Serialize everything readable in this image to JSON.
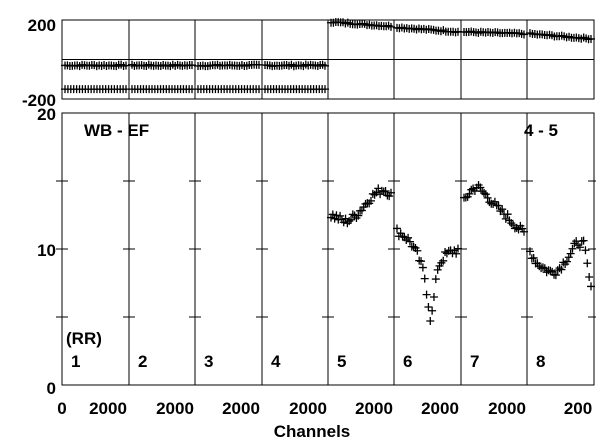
{
  "chart_data": {
    "type": "scatter",
    "title": "",
    "xlabel": "Channels",
    "annotations": {
      "baseline": "WB - EF",
      "pair": "4 - 5",
      "polarization": "(RR)"
    },
    "panel_labels": [
      "1",
      "2",
      "3",
      "4",
      "5",
      "6",
      "7",
      "8"
    ],
    "x_ticks": [
      "0",
      "2000",
      "2000",
      "2000",
      "2000",
      "2000",
      "2000",
      "2000",
      "200"
    ],
    "phase_plot": {
      "ylim": [
        -200,
        200
      ],
      "y_tick_labels": [
        "200",
        "-200"
      ],
      "series": [
        {
          "panel": 1,
          "y": [
            -30,
            -30
          ]
        },
        {
          "panel": 2,
          "y": [
            -30,
            -30
          ]
        },
        {
          "panel": 3,
          "y": [
            -30,
            -30
          ]
        },
        {
          "panel": 4,
          "y": [
            -30,
            -30
          ]
        },
        {
          "panel": 5,
          "y": [
            190,
            168
          ]
        },
        {
          "panel": 6,
          "y": [
            163,
            140
          ]
        },
        {
          "panel": 7,
          "y": [
            140,
            130
          ]
        },
        {
          "panel": 8,
          "y": [
            130,
            105
          ]
        }
      ],
      "second_row_y": -150
    },
    "amplitude_plot": {
      "ylim": [
        0,
        20
      ],
      "y_tick_labels": [
        "20",
        "10",
        "0"
      ],
      "series": [
        {
          "panel": 1,
          "values": []
        },
        {
          "panel": 2,
          "values": []
        },
        {
          "panel": 3,
          "values": []
        },
        {
          "panel": 4,
          "values": []
        },
        {
          "panel": 5,
          "values": [
            12.5,
            12.3,
            12.0,
            12.2,
            12.6,
            13.2,
            13.8,
            14.2,
            14.4,
            14.0
          ]
        },
        {
          "panel": 6,
          "values": [
            11.3,
            11.0,
            10.5,
            9.6,
            8.2,
            4.6,
            8.6,
            9.5,
            9.8,
            9.9
          ]
        },
        {
          "panel": 7,
          "values": [
            13.5,
            14.3,
            14.6,
            14.1,
            13.6,
            13.0,
            12.6,
            12.1,
            11.6,
            11.2
          ]
        },
        {
          "panel": 8,
          "values": [
            9.8,
            9.0,
            8.6,
            8.3,
            8.4,
            9.0,
            9.7,
            10.5,
            10.3,
            7.0
          ]
        }
      ]
    }
  }
}
